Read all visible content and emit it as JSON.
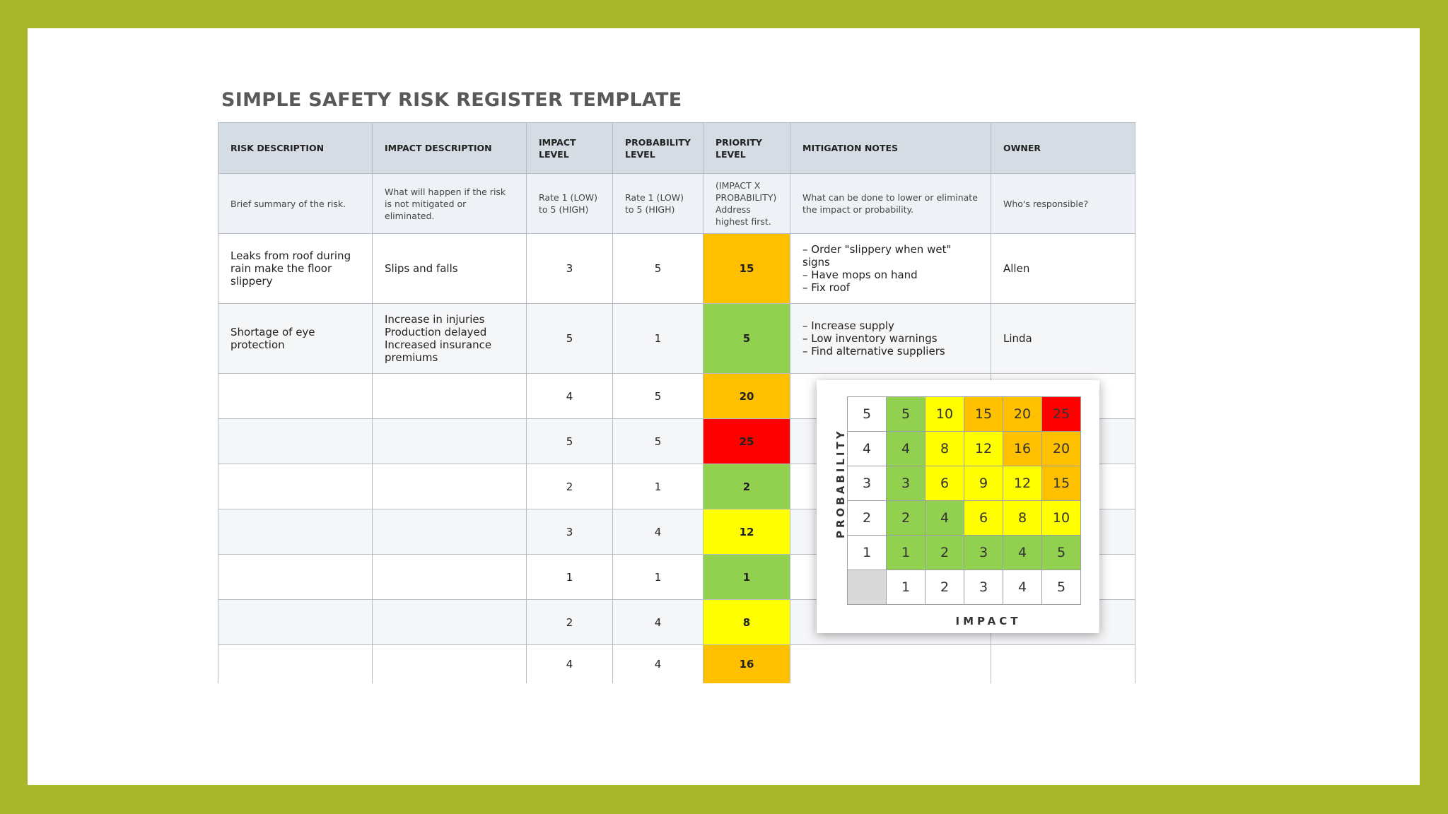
{
  "title": "SIMPLE SAFETY RISK REGISTER TEMPLATE",
  "colors": {
    "frame": "#a6b829",
    "green": "#92d050",
    "yellow": "#ffff00",
    "orange": "#ffc000",
    "red": "#ff0000"
  },
  "table": {
    "headers": [
      "RISK DESCRIPTION",
      "IMPACT DESCRIPTION",
      "IMPACT LEVEL",
      "PROBABILITY LEVEL",
      "PRIORITY LEVEL",
      "MITIGATION NOTES",
      "OWNER"
    ],
    "subheaders": [
      "Brief summary of the risk.",
      "What will happen if the risk is not mitigated or eliminated.",
      "Rate 1 (LOW) to 5 (HIGH)",
      "Rate 1 (LOW) to 5 (HIGH)",
      "(IMPACT X PROBABILITY) Address highest first.",
      "What can be done to lower or eliminate the impact or probability.",
      "Who's responsible?"
    ],
    "rows": [
      {
        "risk": "Leaks from roof during rain make the floor slippery",
        "impact_desc": "Slips and falls",
        "impact": "3",
        "probability": "5",
        "priority": "15",
        "band": "orange",
        "mitigation": [
          "– Order \"slippery when wet\" signs",
          "– Have mops on hand",
          "– Fix roof"
        ],
        "owner": "Allen"
      },
      {
        "risk": "Shortage of eye protection",
        "impact_desc": "Increase in injuries Production delayed Increased insurance premiums",
        "impact": "5",
        "probability": "1",
        "priority": "5",
        "band": "green",
        "mitigation": [
          "– Increase supply",
          "– Low inventory warnings",
          "– Find alternative suppliers"
        ],
        "owner": "Linda"
      },
      {
        "risk": "",
        "impact_desc": "",
        "impact": "4",
        "probability": "5",
        "priority": "20",
        "band": "orange",
        "mitigation": [],
        "owner": ""
      },
      {
        "risk": "",
        "impact_desc": "",
        "impact": "5",
        "probability": "5",
        "priority": "25",
        "band": "red",
        "mitigation": [],
        "owner": ""
      },
      {
        "risk": "",
        "impact_desc": "",
        "impact": "2",
        "probability": "1",
        "priority": "2",
        "band": "green",
        "mitigation": [],
        "owner": ""
      },
      {
        "risk": "",
        "impact_desc": "",
        "impact": "3",
        "probability": "4",
        "priority": "12",
        "band": "yellow",
        "mitigation": [],
        "owner": ""
      },
      {
        "risk": "",
        "impact_desc": "",
        "impact": "1",
        "probability": "1",
        "priority": "1",
        "band": "green",
        "mitigation": [],
        "owner": ""
      },
      {
        "risk": "",
        "impact_desc": "",
        "impact": "2",
        "probability": "4",
        "priority": "8",
        "band": "yellow",
        "mitigation": [],
        "owner": ""
      },
      {
        "risk": "",
        "impact_desc": "",
        "impact": "4",
        "probability": "4",
        "priority": "16",
        "band": "orange",
        "mitigation": [],
        "owner": ""
      }
    ]
  },
  "matrix": {
    "probability_label": "PROBABILITY",
    "impact_label": "IMPACT",
    "rows": [
      {
        "p": "5",
        "cells": [
          {
            "v": "5",
            "c": "green"
          },
          {
            "v": "10",
            "c": "yellow"
          },
          {
            "v": "15",
            "c": "orange"
          },
          {
            "v": "20",
            "c": "orange"
          },
          {
            "v": "25",
            "c": "red"
          }
        ]
      },
      {
        "p": "4",
        "cells": [
          {
            "v": "4",
            "c": "green"
          },
          {
            "v": "8",
            "c": "yellow"
          },
          {
            "v": "12",
            "c": "yellow"
          },
          {
            "v": "16",
            "c": "orange"
          },
          {
            "v": "20",
            "c": "orange"
          }
        ]
      },
      {
        "p": "3",
        "cells": [
          {
            "v": "3",
            "c": "green"
          },
          {
            "v": "6",
            "c": "yellow"
          },
          {
            "v": "9",
            "c": "yellow"
          },
          {
            "v": "12",
            "c": "yellow"
          },
          {
            "v": "15",
            "c": "orange"
          }
        ]
      },
      {
        "p": "2",
        "cells": [
          {
            "v": "2",
            "c": "green"
          },
          {
            "v": "4",
            "c": "green"
          },
          {
            "v": "6",
            "c": "yellow"
          },
          {
            "v": "8",
            "c": "yellow"
          },
          {
            "v": "10",
            "c": "yellow"
          }
        ]
      },
      {
        "p": "1",
        "cells": [
          {
            "v": "1",
            "c": "green"
          },
          {
            "v": "2",
            "c": "green"
          },
          {
            "v": "3",
            "c": "green"
          },
          {
            "v": "4",
            "c": "green"
          },
          {
            "v": "5",
            "c": "green"
          }
        ]
      }
    ],
    "impact_axis": [
      "1",
      "2",
      "3",
      "4",
      "5"
    ]
  }
}
